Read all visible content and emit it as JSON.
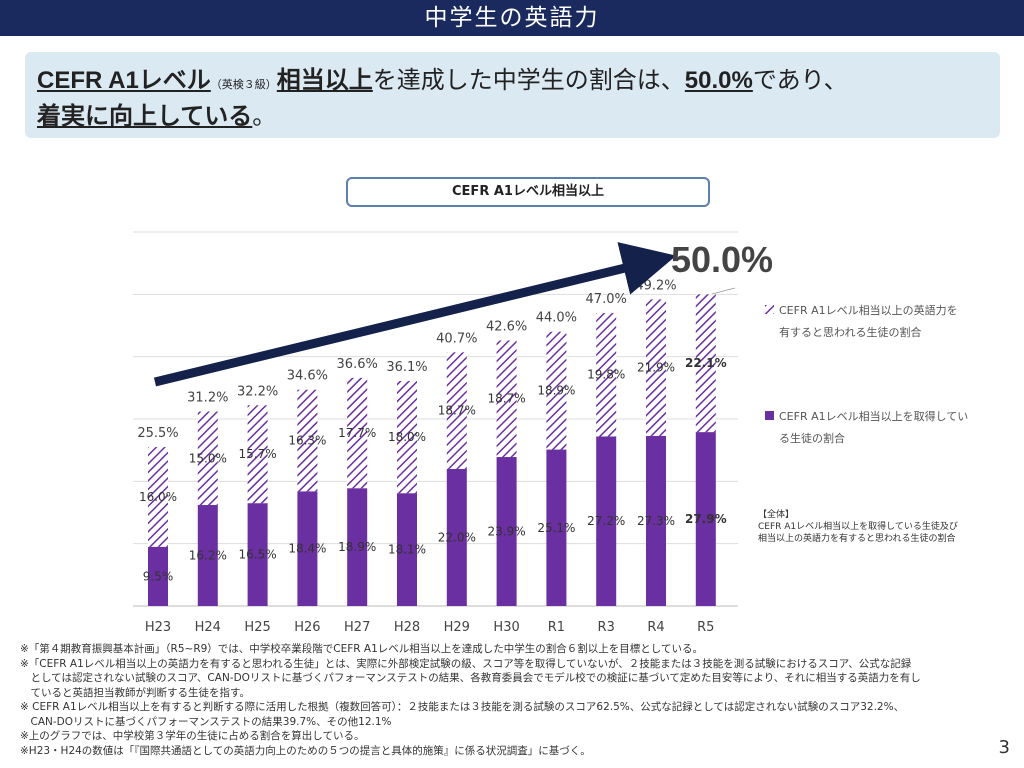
{
  "page": {
    "title": "中学生の英語力",
    "page_number": "3"
  },
  "summary": {
    "line1_a": "CEFR A1レベル",
    "line1_small": "（英検３級）",
    "line1_b": "相当以上",
    "line1_c": "を達成した中学生の割合は、",
    "line1_d": "50.0%",
    "line1_e": "であり、",
    "line2_a": "着実に向上している",
    "line2_b": "。"
  },
  "colors": {
    "bar_solid": "#6a2fa0",
    "bar_hatch": "#6a2fa0",
    "arrow": "#14214a",
    "title_bar": "#1a2a5e"
  },
  "chart_data": {
    "type": "bar",
    "stacked": true,
    "title": "CEFR A1レベル相当以上",
    "categories": [
      "H23",
      "H24",
      "H25",
      "H26",
      "H27",
      "H28",
      "H29",
      "H30",
      "R1",
      "R3",
      "R4",
      "R5"
    ],
    "series": [
      {
        "name": "CEFR A1レベル相当以上を取得している生徒の割合",
        "pattern": "solid",
        "values": [
          9.5,
          16.2,
          16.5,
          18.4,
          18.9,
          18.1,
          22.0,
          23.9,
          25.1,
          27.2,
          27.3,
          27.9
        ],
        "labels": [
          "9.5%",
          "16.2%",
          "16.5%",
          "18.4%",
          "18.9%",
          "18.1%",
          "22.0%",
          "23.9%",
          "25.1%",
          "27.2%",
          "27.3%",
          "27.9%"
        ]
      },
      {
        "name": "CEFR A1レベル相当以上の英語力を有すると思われる生徒の割合",
        "pattern": "hatched",
        "values": [
          16.0,
          15.0,
          15.7,
          16.3,
          17.7,
          18.0,
          18.7,
          18.7,
          18.9,
          19.8,
          21.9,
          22.1
        ],
        "labels": [
          "16.0%",
          "15.0%",
          "15.7%",
          "16.3%",
          "17.7%",
          "18.0%",
          "18.7%",
          "18.7%",
          "18.9%",
          "19.8%",
          "21.9%",
          "22.1%"
        ]
      }
    ],
    "totals": [
      25.5,
      31.2,
      32.2,
      34.6,
      36.6,
      36.1,
      40.7,
      42.6,
      44.0,
      47.0,
      49.2,
      50.0
    ],
    "total_labels": [
      "25.5%",
      "31.2%",
      "32.2%",
      "34.6%",
      "36.6%",
      "36.1%",
      "40.7%",
      "42.6%",
      "44.0%",
      "47.0%",
      "49.2%",
      ""
    ],
    "highlight_label": "50.0%",
    "ylim": [
      0,
      60
    ],
    "grid": true,
    "legend": {
      "position": "right",
      "hatched_line1": "CEFR A1レベル相当以上の英語力を",
      "hatched_line2": "有すると思われる生徒の割合",
      "solid_line1": "CEFR A1レベル相当以上を取得してい",
      "solid_line2": "る生徒の割合"
    },
    "note": {
      "line1": "【全体】",
      "line2": "CEFR A1レベル相当以上を取得している生徒及び",
      "line3": "相当以上の英語力を有すると思われる生徒の割合"
    }
  },
  "footnotes": [
    "※「第４期教育振興基本計画」（R5~R9）では、中学校卒業段階でCEFR A1レベル相当以上を達成した中学生の割合６割以上を目標としている。",
    "※「CEFR A1レベル相当以上の英語力を有すると思われる生徒」とは、実際に外部検定試験の級、スコア等を取得していないが、２技能または３技能を測る試験におけるスコア、公式な記録",
    "　としては認定されない試験のスコア、CAN-DOリストに基づくパフォーマンステストの結果、各教育委員会でモデル校での検証に基づいて定めた目安等により、それに相当する英語力を有し",
    "　ていると英語担当教師が判断する生徒を指す。",
    "※ CEFR A1レベル相当以上を有すると判断する際に活用した根拠（複数回答可）：２技能または３技能を測る試験のスコア62.5%、公式な記録としては認定されない試験のスコア32.2%、",
    "　CAN-DOリストに基づくパフォーマンステストの結果39.7%、その他12.1%",
    "※上のグラフでは、中学校第３学年の生徒に占める割合を算出している。",
    "※H23・H24の数値は「『国際共通語としての英語力向上のための５つの提言と具体的施策』に係る状況調査」に基づく。"
  ]
}
